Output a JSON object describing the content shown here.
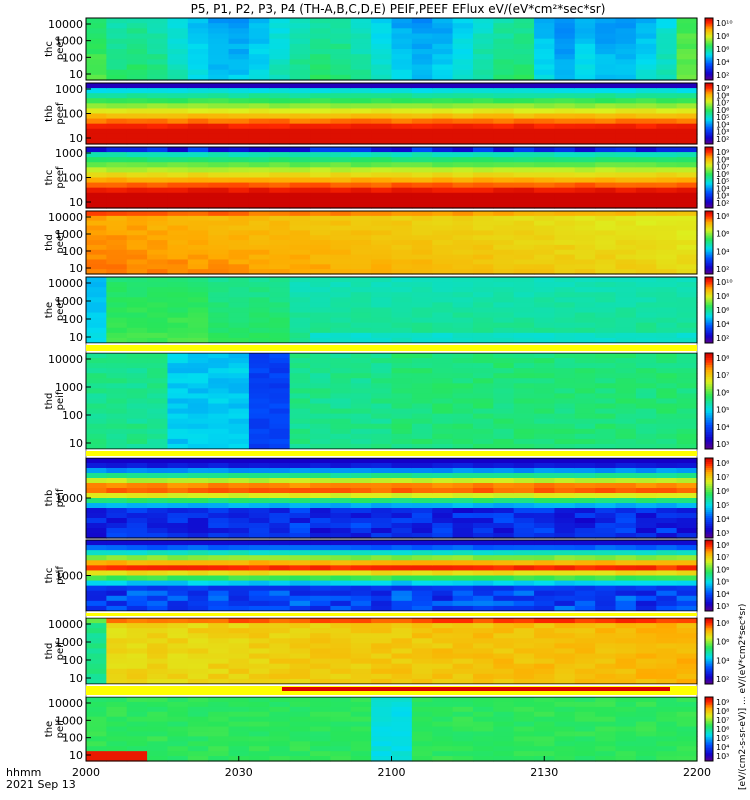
{
  "title": "P5, P1, P2, P3, P4 (TH-A,B,C,D,E) PEIF,PEEF EFlux eV/(eV*cm²*sec*sr)",
  "time_axis": {
    "label_line1": "hhmm",
    "label_line2": "2021 Sep 13",
    "ticks": [
      "2000",
      "2030",
      "2100",
      "2130",
      "2200"
    ]
  },
  "colorbar_label": "[eV/(cm2-s-sr-eV)] ... eV/(eV*cm2*sec*sr)",
  "chart_data": {
    "type": "heatmap",
    "x_ticks": [
      "2000",
      "2030",
      "2100",
      "2130",
      "2200"
    ],
    "panels": [
      {
        "name": "thc peef",
        "label": [
          "thc",
          "peef"
        ],
        "y_ticks": [
          "10000",
          "1000",
          "100",
          "10"
        ],
        "colorbar_ticks": [
          "10¹⁰",
          "10⁸",
          "10⁶",
          "10⁴",
          "10²"
        ],
        "pattern": "green_cyan_mid",
        "time_cols": [
          [
            0.56,
            0.5,
            0.48
          ],
          [
            0.52,
            0.45,
            0.5
          ],
          [
            0.4,
            0.5,
            0.55
          ],
          [
            0.48,
            0.52,
            0.5
          ],
          [
            0.5,
            0.55,
            0.52
          ],
          [
            0.5,
            0.48,
            0.5
          ],
          [
            0.55,
            0.52,
            0.5
          ],
          [
            0.52,
            0.5,
            0.48
          ],
          [
            0.5,
            0.48,
            0.52
          ],
          [
            0.55,
            0.5,
            0.5
          ],
          [
            0.5,
            0.5,
            0.5
          ],
          [
            0.48,
            0.52,
            0.55
          ],
          [
            0.52,
            0.5,
            0.5
          ]
        ]
      },
      {
        "name": "thb peef",
        "label": [
          "thb",
          "peef"
        ],
        "y_ticks": [
          "1000",
          "100",
          "10"
        ],
        "colorbar_ticks": [
          "10⁹",
          "10⁸",
          "10⁷",
          "10⁶",
          "10⁵",
          "10⁴",
          "10³",
          "10²"
        ],
        "pattern": "red_bottom"
      },
      {
        "name": "thc peef 2",
        "label": [
          "thc",
          "peef"
        ],
        "y_ticks": [
          "1000",
          "100",
          "10"
        ],
        "colorbar_ticks": [
          "10⁹",
          "10⁸",
          "10⁷",
          "10⁶",
          "10⁵",
          "10⁴",
          "10³",
          "10²"
        ],
        "pattern": "red_bottom_dark"
      },
      {
        "name": "thd peef",
        "label": [
          "thd",
          "peef"
        ],
        "y_ticks": [
          "10000",
          "1000",
          "100",
          "10"
        ],
        "colorbar_ticks": [
          "10⁸",
          "10⁶",
          "10⁴",
          "10²"
        ],
        "pattern": "orange_yellow"
      },
      {
        "name": "the peef",
        "label": [
          "the",
          "peef"
        ],
        "y_ticks": [
          "10000",
          "1000",
          "100",
          "10"
        ],
        "colorbar_ticks": [
          "10¹⁰",
          "10⁸",
          "10⁶",
          "10⁴",
          "10²"
        ],
        "pattern": "green_patchy"
      },
      {
        "name": "thd peif",
        "label": [
          "thd",
          "peif"
        ],
        "y_ticks": [
          "10000",
          "1000",
          "100",
          "10"
        ],
        "colorbar_ticks": [
          "10⁸",
          "10⁷",
          "10⁶",
          "10⁵",
          "10⁴",
          "10³"
        ],
        "pattern": "cyan_blue_ion"
      },
      {
        "name": "thb peif",
        "label": [
          "thb",
          "peif"
        ],
        "y_ticks": [
          "1000"
        ],
        "colorbar_ticks": [
          "10⁸",
          "10⁷",
          "10⁶",
          "10⁵",
          "10⁴",
          "10³"
        ],
        "pattern": "ion_band"
      },
      {
        "name": "thc peif",
        "label": [
          "thc",
          "peif"
        ],
        "y_ticks": [
          "1000"
        ],
        "colorbar_ticks": [
          "10⁸",
          "10⁷",
          "10⁶",
          "10⁵",
          "10⁴",
          "10³"
        ],
        "pattern": "ion_band2"
      },
      {
        "name": "thd peif 2",
        "label": [
          "thd",
          "peif"
        ],
        "y_ticks": [
          "10000",
          "1000",
          "100",
          "10"
        ],
        "colorbar_ticks": [
          "10⁸",
          "10⁶",
          "10⁴",
          "10²"
        ],
        "pattern": "yellow_orange_ion"
      },
      {
        "name": "the peif",
        "label": [
          "the",
          "peif"
        ],
        "y_ticks": [
          "10000",
          "1000",
          "100",
          "10"
        ],
        "colorbar_ticks": [
          "10⁹",
          "10⁸",
          "10⁷",
          "10⁶",
          "10⁵",
          "10⁴",
          "10³"
        ],
        "pattern": "green_blue_ion"
      }
    ]
  }
}
